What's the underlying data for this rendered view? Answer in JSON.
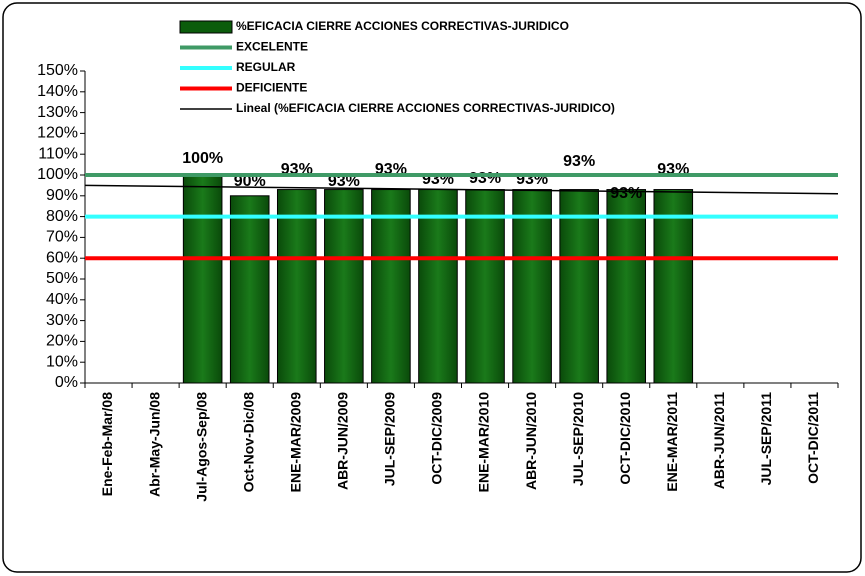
{
  "chart_data": {
    "type": "bar",
    "categories": [
      "Ene-Feb-Mar/08",
      "Abr-May-Jun/08",
      "Jul-Agos-Sep/08",
      "Oct-Nov-Dic/08",
      "ENE-MAR/2009",
      "ABR-JUN/2009",
      "JUL-SEP/2009",
      "OCT-DIC/2009",
      "ENE-MAR/2010",
      "ABR-JUN/2010",
      "JUL-SEP/2010",
      "OCT-DIC/2010",
      "ENE-MAR/2011",
      "ABR-JUN/2011",
      "JUL-SEP/2011",
      "OCT-DIC/2011"
    ],
    "series": [
      {
        "name": "%EFICACIA CIERRE ACCIONES CORRECTIVAS-JURIDICO",
        "color": "#0b5c0b",
        "values": [
          null,
          null,
          100,
          90,
          93,
          93,
          93,
          93,
          93,
          93,
          93,
          93,
          93,
          null,
          null,
          null
        ],
        "value_labels": [
          null,
          null,
          "100%",
          "90%",
          "93%",
          "93%",
          "93%",
          "93%",
          "93%",
          "93%",
          "93%",
          "93%",
          "93%",
          null,
          null,
          null
        ]
      }
    ],
    "reference_lines": [
      {
        "name": "EXCELENTE",
        "color": "#3f9a66",
        "value": 100
      },
      {
        "name": "REGULAR",
        "color": "#33ffff",
        "value": 80
      },
      {
        "name": "DEFICIENTE",
        "color": "#ff0000",
        "value": 60
      }
    ],
    "trendline": {
      "name": "Lineal (%EFICACIA CIERRE ACCIONES CORRECTIVAS-JURIDICO)",
      "color": "#000000",
      "start": 95,
      "end": 91
    },
    "ylim": [
      0,
      150
    ],
    "yticks": [
      {
        "value": 0,
        "label": "0%"
      },
      {
        "value": 10,
        "label": "10%"
      },
      {
        "value": 20,
        "label": "20%"
      },
      {
        "value": 30,
        "label": "30%"
      },
      {
        "value": 40,
        "label": "40%"
      },
      {
        "value": 50,
        "label": "50%"
      },
      {
        "value": 60,
        "label": "60%"
      },
      {
        "value": 70,
        "label": "70%"
      },
      {
        "value": 80,
        "label": "80%"
      },
      {
        "value": 90,
        "label": "90%"
      },
      {
        "value": 100,
        "label": "100%"
      },
      {
        "value": 110,
        "label": "110%"
      },
      {
        "value": 120,
        "label": "120%"
      },
      {
        "value": 130,
        "label": "130%"
      },
      {
        "value": 140,
        "label": "140%"
      },
      {
        "value": 150,
        "label": "150%"
      }
    ]
  }
}
